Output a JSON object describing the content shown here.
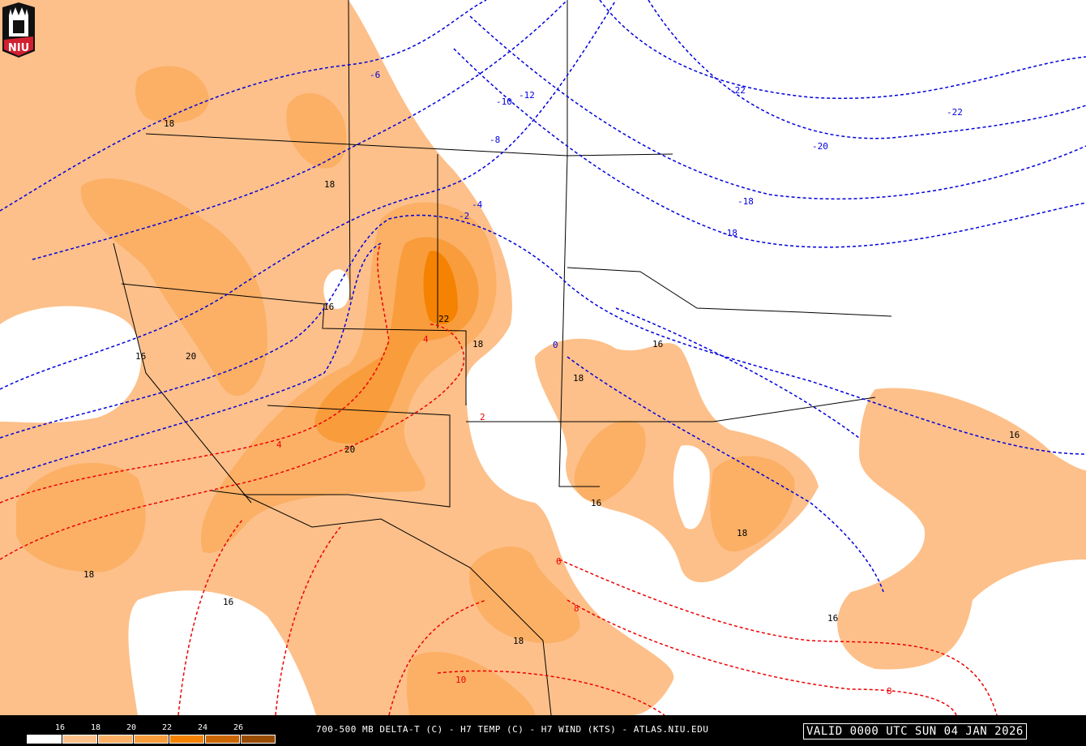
{
  "title": "700-500 MB DELTA-T (C) - H7 TEMP (C) - H7 WIND (KTS) - ATLAS.NIU.EDU",
  "valid_time": "VALID 0000 UTC SUN 04 JAN 2026",
  "logo": {
    "text": "NIU"
  },
  "colorbar": {
    "labels": [
      "16",
      "18",
      "20",
      "22",
      "24",
      "26"
    ],
    "colors": [
      "#ffffff",
      "#fdc08a",
      "#fbb066",
      "#f99c3c",
      "#f58200",
      "#cc6600",
      "#994c00"
    ]
  },
  "map_colors": {
    "delta_t_contour": "#000000",
    "temp_negative": "#0000dd",
    "temp_positive": "#ee0000",
    "borders": "#000000"
  },
  "contour_labels": {
    "temp_blue": [
      "-6",
      "-10",
      "-12",
      "-8",
      "-22",
      "-22",
      "-20",
      "-18",
      "-18",
      "-4",
      "-2",
      "0"
    ],
    "temp_red": [
      "2",
      "4",
      "4",
      "6",
      "8",
      "10",
      "8"
    ],
    "delta_t": [
      "18",
      "18",
      "16",
      "20",
      "16",
      "22",
      "18",
      "18",
      "16",
      "20",
      "16",
      "18",
      "18",
      "16",
      "18",
      "16",
      "16"
    ]
  }
}
